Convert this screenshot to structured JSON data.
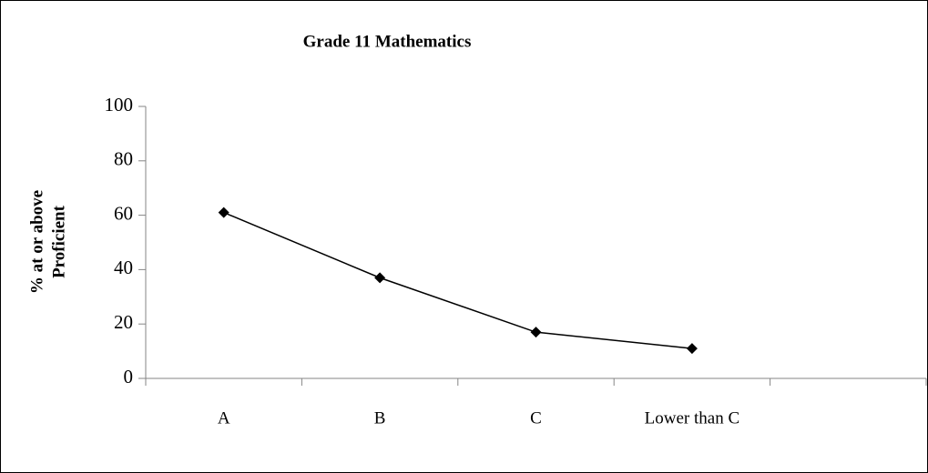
{
  "chart_data": {
    "type": "line",
    "title": "Grade 11 Mathematics",
    "y_label": [
      "% at or above",
      "Proficient"
    ],
    "categories": [
      "A",
      "B",
      "C",
      "Lower than C",
      null
    ],
    "series": [
      {
        "name": null,
        "color": "#000000",
        "values": [
          61,
          37,
          17,
          11,
          null
        ]
      }
    ],
    "ylim": [
      0,
      100
    ],
    "yticks": [
      0,
      20,
      40,
      60,
      80,
      100
    ],
    "grid": false
  }
}
